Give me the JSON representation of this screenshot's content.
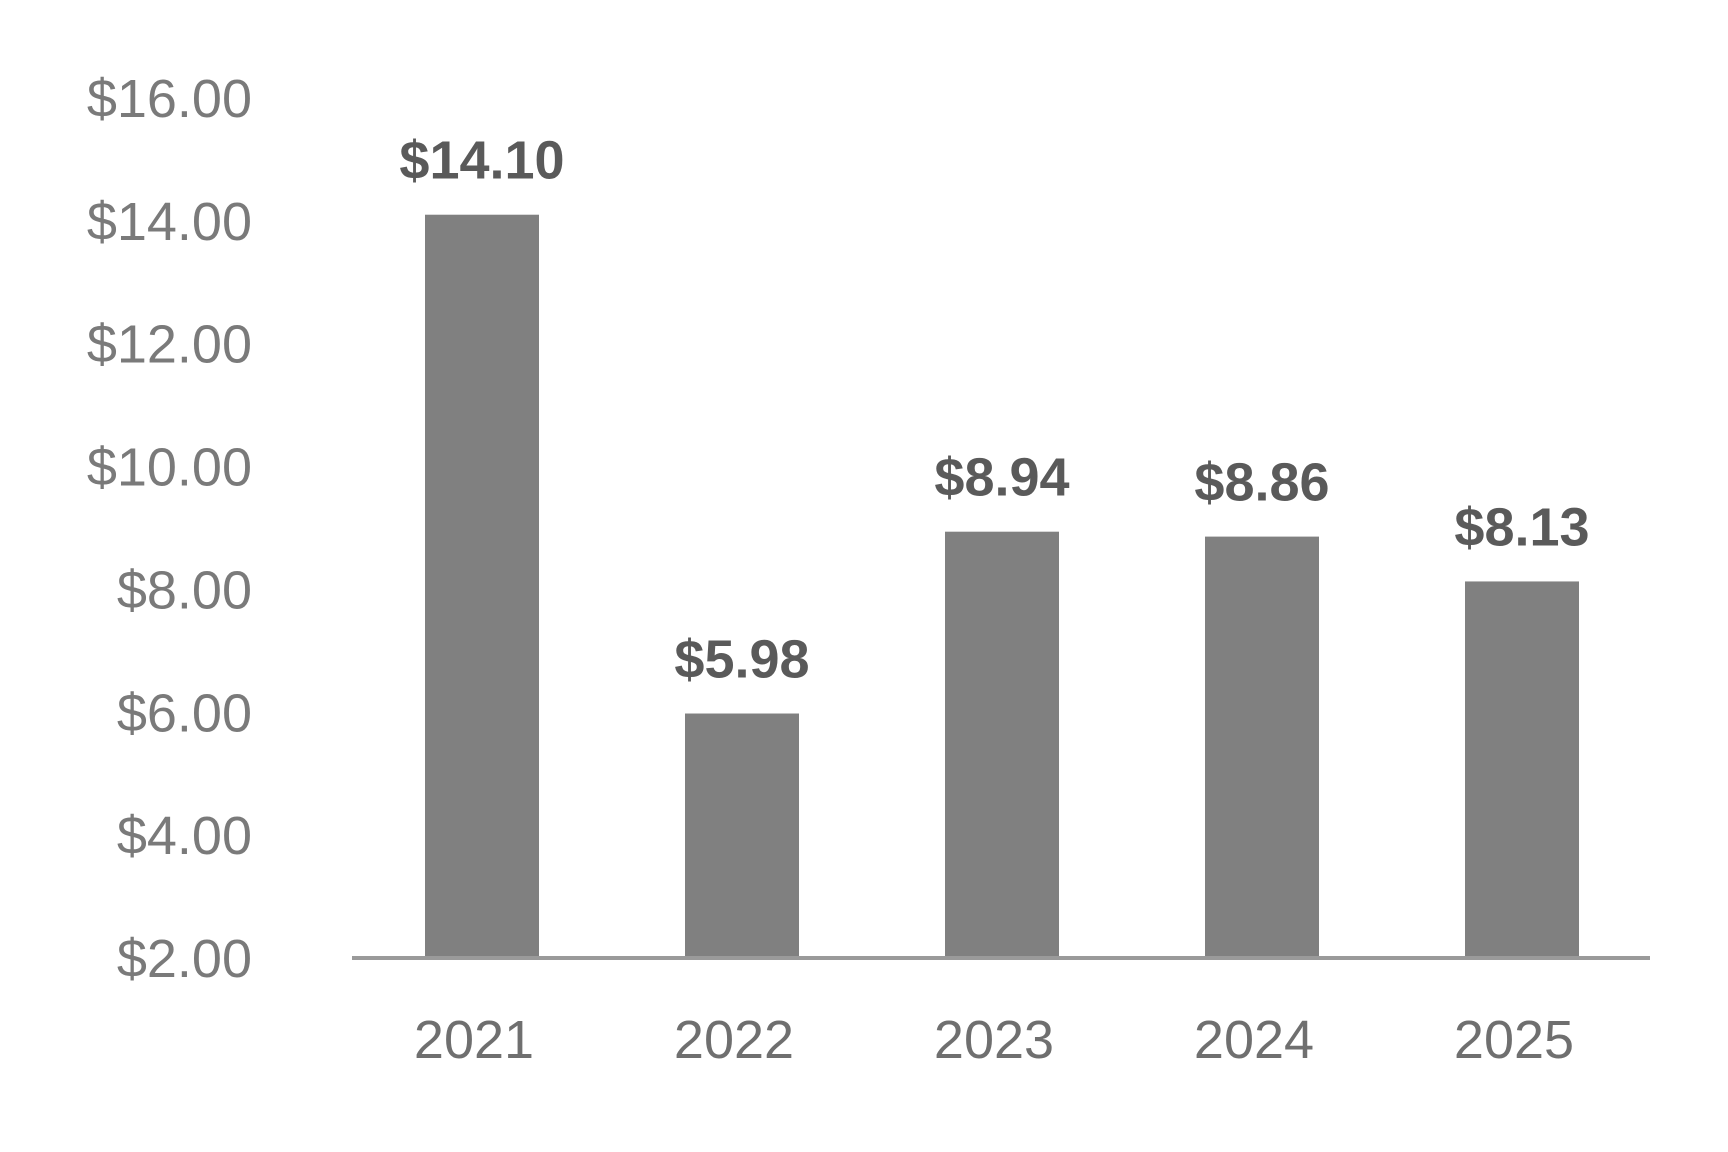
{
  "chart_data": {
    "type": "bar",
    "categories": [
      "2021",
      "2022",
      "2023",
      "2024",
      "2025"
    ],
    "values": [
      14.1,
      5.98,
      8.94,
      8.86,
      8.13
    ],
    "data_labels": [
      "$14.10",
      "$5.98",
      "$8.94",
      "$8.86",
      "$8.13"
    ],
    "y_ticks": [
      2,
      4,
      6,
      8,
      10,
      12,
      14,
      16
    ],
    "y_tick_labels": [
      "$2.00",
      "$4.00",
      "$6.00",
      "$8.00",
      "$10.00",
      "$12.00",
      "$14.00",
      "$16.00"
    ],
    "ylim": [
      2,
      16
    ],
    "title": "",
    "xlabel": "",
    "ylabel": "",
    "grid": false,
    "legend": "none",
    "bar_color": "#808080",
    "axis_color": "#9a9a9a"
  }
}
